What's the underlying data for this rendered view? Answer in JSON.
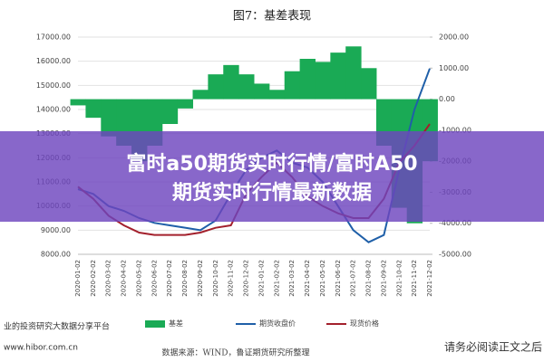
{
  "chart_data": {
    "type": "combo",
    "title": "图7：基差表现",
    "categories": [
      "2020-01-02",
      "2020-02-02",
      "2020-03-02",
      "2020-04-02",
      "2020-05-02",
      "2020-06-02",
      "2020-07-02",
      "2020-08-02",
      "2020-09-02",
      "2020-10-02",
      "2020-11-02",
      "2020-12-02",
      "2021-01-02",
      "2021-02-02",
      "2021-03-02",
      "2021-04-02",
      "2021-05-02",
      "2021-06-02",
      "2021-07-02",
      "2021-08-02",
      "2021-09-02",
      "2021-10-02",
      "2021-11-02",
      "2021-12-02"
    ],
    "series": [
      {
        "name": "基差",
        "type": "area",
        "axis": "y2",
        "color": "#1aaa55",
        "values": [
          -200,
          -600,
          -1200,
          -1500,
          -2000,
          -1500,
          -800,
          -300,
          300,
          800,
          1100,
          800,
          500,
          300,
          900,
          1300,
          1200,
          1500,
          1700,
          1000,
          -1500,
          -3500,
          -4000,
          -2000
        ]
      },
      {
        "name": "期货收盘价",
        "type": "line",
        "color": "#1f5fa8",
        "values": [
          10700,
          10500,
          10000,
          9800,
          9500,
          9300,
          9200,
          9100,
          9000,
          9400,
          10500,
          11500,
          12000,
          12300,
          11800,
          11600,
          11000,
          10000,
          9000,
          8500,
          8800,
          11500,
          14000,
          15700
        ]
      },
      {
        "name": "现货价格",
        "type": "line",
        "color": "#a3202c",
        "values": [
          10800,
          10300,
          9600,
          9200,
          8900,
          8800,
          8800,
          8800,
          8900,
          9100,
          9200,
          10500,
          11200,
          11800,
          11200,
          10400,
          10000,
          9700,
          9500,
          9500,
          10300,
          11800,
          12500,
          13400
        ]
      }
    ],
    "ylim": [
      8000,
      17000
    ],
    "yticks": [
      {
        "value": 8000,
        "label": "8000.00"
      },
      {
        "value": 9000,
        "label": "9000.00"
      },
      {
        "value": 10000,
        "label": "10000.00"
      },
      {
        "value": 11000,
        "label": "11000.00"
      },
      {
        "value": 12000,
        "label": "12000.00"
      },
      {
        "value": 13000,
        "label": "13000.00"
      },
      {
        "value": 14000,
        "label": "14000.00"
      },
      {
        "value": 15000,
        "label": "15000.00"
      },
      {
        "value": 16000,
        "label": "16000.00"
      },
      {
        "value": 17000,
        "label": "17000.00"
      }
    ],
    "y2lim": [
      -5000,
      2000
    ],
    "y2ticks": [
      {
        "value": -5000,
        "label": "-5000.00"
      },
      {
        "value": -4000,
        "label": "-4000.00"
      },
      {
        "value": -3000,
        "label": "-3000.00"
      },
      {
        "value": -2000,
        "label": "-2000.00"
      },
      {
        "value": -1000,
        "label": "-1000.00"
      },
      {
        "value": 0,
        "label": "0.00"
      },
      {
        "value": 1000,
        "label": "1000.00"
      },
      {
        "value": 2000,
        "label": "2000.00"
      }
    ],
    "grid": true,
    "source": "数据来源：WIND，鲁证期货研究所整理"
  },
  "overlay": {
    "headline_1": "富时a50期货实时行情/富时A50",
    "headline_2": "期货实时行情最新数据"
  },
  "watermark": {
    "platform": "业的投资研究大数据分享平台",
    "url": "www.hibor.com.cn",
    "notice": "请务必阅读正文之后"
  }
}
